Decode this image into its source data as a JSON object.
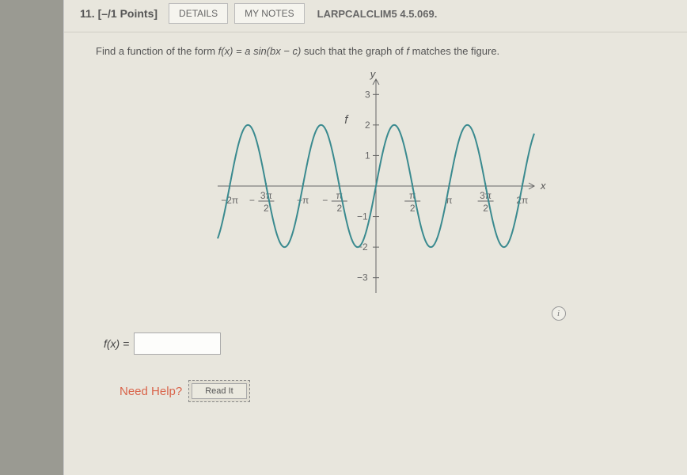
{
  "header": {
    "question_label": "11. [–/1 Points]",
    "details_btn": "DETAILS",
    "notes_btn": "MY NOTES",
    "source": "LARPCALCLIM5 4.5.069."
  },
  "prompt": {
    "text_before": "Find a function of the form ",
    "formula": "f(x) = a sin(bx − c)",
    "text_after": " such that the graph of ",
    "f_ref": "f",
    "text_end": " matches the figure."
  },
  "chart": {
    "type": "line",
    "curve_color": "#3a8a8f",
    "axis_color": "#666666",
    "background_color": "#e8e6dd",
    "line_width": 2,
    "amplitude": 2,
    "frequency": 2,
    "phase": 0,
    "xlim": [
      -6.8,
      6.8
    ],
    "ylim": [
      -3.5,
      3.5
    ],
    "y_ticks": [
      -3,
      -2,
      -1,
      1,
      2,
      3
    ],
    "x_ticks": [
      {
        "val": -6.2832,
        "top": "−2π"
      },
      {
        "val": -4.7124,
        "frac_top": "3π",
        "frac_bot": "2",
        "neg": true
      },
      {
        "val": -3.1416,
        "top": "−π"
      },
      {
        "val": -1.5708,
        "frac_top": "π",
        "frac_bot": "2",
        "neg": true
      },
      {
        "val": 1.5708,
        "frac_top": "π",
        "frac_bot": "2"
      },
      {
        "val": 3.1416,
        "top": "π"
      },
      {
        "val": 4.7124,
        "frac_top": "3π",
        "frac_bot": "2"
      },
      {
        "val": 6.2832,
        "top": "2π"
      }
    ],
    "x_axis_label": "x",
    "y_axis_label": "y",
    "function_label": "f"
  },
  "answer": {
    "label": "f(x) =",
    "value": ""
  },
  "help": {
    "label": "Need Help?",
    "readit": "Read It"
  },
  "info_icon": "i"
}
